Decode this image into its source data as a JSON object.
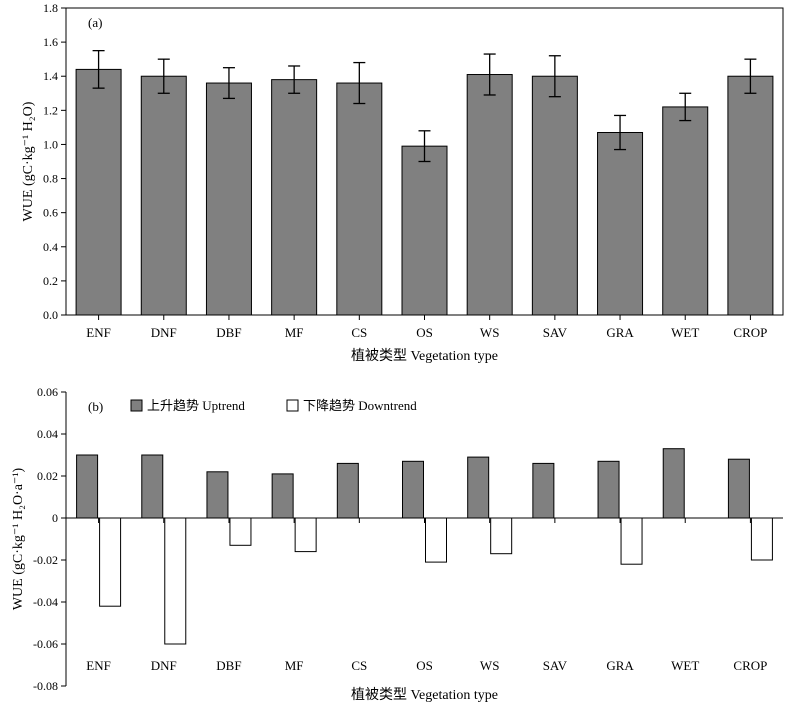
{
  "chart_data": [
    {
      "type": "bar",
      "panel_label": "(a)",
      "title": "",
      "xlabel": "植被类型 Vegetation type",
      "ylabel": "WUE (gC·kg⁻¹ H₂O)",
      "ylim": [
        0,
        1.8
      ],
      "yticks": [
        "0.0",
        "0.2",
        "0.4",
        "0.6",
        "0.8",
        "1.0",
        "1.2",
        "1.4",
        "1.6",
        "1.8"
      ],
      "categories": [
        "ENF",
        "DNF",
        "DBF",
        "MF",
        "CS",
        "OS",
        "WS",
        "SAV",
        "GRA",
        "WET",
        "CROP"
      ],
      "values": [
        1.44,
        1.4,
        1.36,
        1.38,
        1.36,
        0.99,
        1.41,
        1.4,
        1.07,
        1.22,
        1.4
      ],
      "error": [
        0.11,
        0.1,
        0.09,
        0.08,
        0.12,
        0.09,
        0.12,
        0.12,
        0.1,
        0.08,
        0.1
      ],
      "bar_color": "#808080"
    },
    {
      "type": "bar",
      "panel_label": "(b)",
      "title": "",
      "xlabel": "植被类型 Vegetation type",
      "ylabel": "WUE (gC·kg⁻¹ H₂O·a⁻¹)",
      "ylim": [
        -0.08,
        0.06
      ],
      "yticks": [
        "-0.08",
        "-0.06",
        "-0.04",
        "-0.02",
        "0",
        "0.02",
        "0.04",
        "0.06"
      ],
      "categories": [
        "ENF",
        "DNF",
        "DBF",
        "MF",
        "CS",
        "OS",
        "WS",
        "SAV",
        "GRA",
        "WET",
        "CROP"
      ],
      "legend": "top-left",
      "series": [
        {
          "name": "上升趋势 Uptrend",
          "color": "#808080",
          "values": [
            0.03,
            0.03,
            0.022,
            0.021,
            0.026,
            0.027,
            0.029,
            0.026,
            0.027,
            0.033,
            0.028
          ]
        },
        {
          "name": "下降趋势 Downtrend",
          "color": "#ffffff",
          "values": [
            -0.042,
            -0.06,
            -0.013,
            -0.016,
            null,
            -0.021,
            -0.017,
            null,
            -0.022,
            null,
            -0.02
          ]
        }
      ]
    }
  ]
}
